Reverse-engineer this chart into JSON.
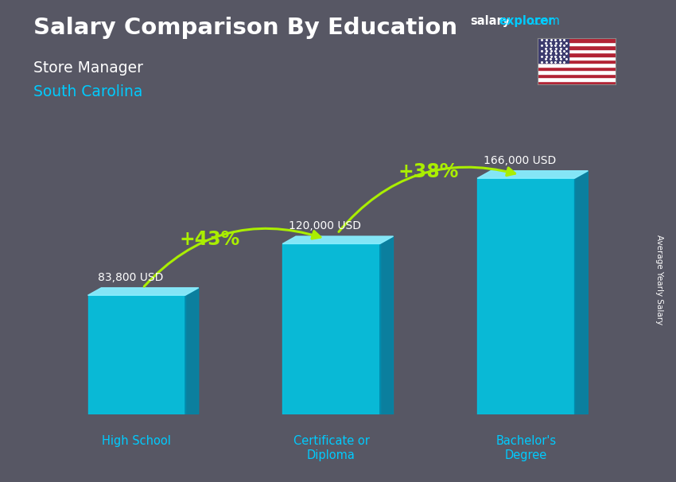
{
  "title_main": "Salary Comparison By Education",
  "subtitle1": "Store Manager",
  "subtitle2": "South Carolina",
  "ylabel": "Average Yearly Salary",
  "categories": [
    "High School",
    "Certificate or\nDiploma",
    "Bachelor's\nDegree"
  ],
  "values": [
    83800,
    120000,
    166000
  ],
  "value_labels": [
    "83,800 USD",
    "120,000 USD",
    "166,000 USD"
  ],
  "pct_labels": [
    "+43%",
    "+38%"
  ],
  "pct_color": "#aaee00",
  "bar_face_color": "#00c8e8",
  "bar_top_color": "#88eeff",
  "bar_side_color": "#0088aa",
  "text_color_white": "#ffffff",
  "text_color_cyan": "#00ccff",
  "bg_color": "#3a3a4a",
  "site_salary_color": "#ffffff",
  "site_explorer_color": "#00ccff",
  "site_com_color": "#00ccff",
  "flag_red": "#B22234",
  "flag_blue": "#3C3B6E"
}
